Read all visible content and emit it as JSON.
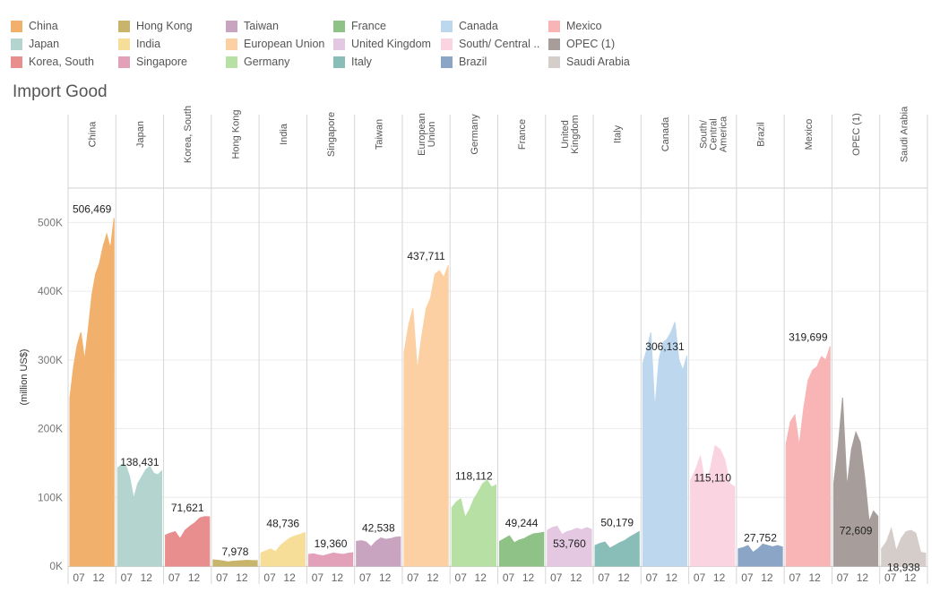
{
  "legend": {
    "items": [
      {
        "label": "China",
        "color": "#f1b06c"
      },
      {
        "label": "Japan",
        "color": "#b3d4cf"
      },
      {
        "label": "Korea, South",
        "color": "#e88e8e"
      },
      {
        "label": "Hong Kong",
        "color": "#c9b46b"
      },
      {
        "label": "India",
        "color": "#f6dd98"
      },
      {
        "label": "Singapore",
        "color": "#e3a0b9"
      },
      {
        "label": "Taiwan",
        "color": "#c9a4c1"
      },
      {
        "label": "European Union",
        "color": "#fdd0a4"
      },
      {
        "label": "Germany",
        "color": "#b6e0a4"
      },
      {
        "label": "France",
        "color": "#8fc286"
      },
      {
        "label": "United Kingdom",
        "color": "#e4c8e2"
      },
      {
        "label": "Italy",
        "color": "#88bdb8"
      },
      {
        "label": "Canada",
        "color": "#bcd7ee"
      },
      {
        "label": "South/ Central ..",
        "color": "#fbd4e1"
      },
      {
        "label": "Brazil",
        "color": "#8ba5c6"
      },
      {
        "label": "Mexico",
        "color": "#f9b5b5"
      },
      {
        "label": "OPEC (1)",
        "color": "#a79e9b"
      },
      {
        "label": "Saudi Arabia",
        "color": "#d4cdca"
      }
    ]
  },
  "title": "Import Good",
  "chart_data": {
    "type": "area",
    "title": "Import Good",
    "ylabel": "(million US$)",
    "ylim": [
      0,
      550000
    ],
    "yticks": [
      0,
      100000,
      200000,
      300000,
      400000,
      500000
    ],
    "ytick_labels": [
      "0K",
      "100K",
      "200K",
      "300K",
      "400K",
      "500K"
    ],
    "xtick_labels": [
      "07",
      "12"
    ],
    "grid": true,
    "legend_position": "top",
    "panels": [
      {
        "name": "China",
        "header": [
          "China"
        ],
        "color": "#f1b06c",
        "last_label": "506,469",
        "label_pos": "top",
        "values": [
          245000,
          290000,
          322000,
          340000,
          300000,
          345000,
          395000,
          425000,
          440000,
          465000,
          483000,
          462000,
          506469
        ]
      },
      {
        "name": "Japan",
        "header": [
          "Japan"
        ],
        "color": "#b3d4cf",
        "last_label": "138,431",
        "label_pos": "top",
        "values": [
          143000,
          148000,
          147000,
          130000,
          98000,
          120000,
          130000,
          140000,
          145000,
          135000,
          133000,
          138431
        ]
      },
      {
        "name": "Korea, South",
        "header": [
          "Korea, South"
        ],
        "color": "#e88e8e",
        "last_label": "71,621",
        "label_pos": "top",
        "values": [
          45000,
          48000,
          50000,
          40000,
          52000,
          58000,
          63000,
          70000,
          72000,
          71621
        ]
      },
      {
        "name": "Hong Kong",
        "header": [
          "Hong Kong"
        ],
        "color": "#c9b46b",
        "last_label": "7,978",
        "label_pos": "top",
        "values": [
          9000,
          8500,
          7500,
          6000,
          7000,
          7500,
          8000,
          8500,
          8000,
          7978
        ]
      },
      {
        "name": "India",
        "header": [
          "India"
        ],
        "color": "#f6dd98",
        "last_label": "48,736",
        "label_pos": "top",
        "values": [
          19000,
          22000,
          25000,
          21000,
          30000,
          36000,
          41000,
          44000,
          46000,
          48736
        ]
      },
      {
        "name": "Singapore",
        "header": [
          "Singapore"
        ],
        "color": "#e3a0b9",
        "last_label": "19,360",
        "label_pos": "top",
        "values": [
          17000,
          18000,
          16000,
          15000,
          17000,
          19000,
          18000,
          17000,
          18500,
          19360
        ]
      },
      {
        "name": "Taiwan",
        "header": [
          "Taiwan"
        ],
        "color": "#c9a4c1",
        "last_label": "42,538",
        "label_pos": "top",
        "values": [
          36000,
          37000,
          35000,
          28000,
          36000,
          41000,
          39000,
          40000,
          42000,
          42538
        ]
      },
      {
        "name": "European Union",
        "header": [
          "European",
          "Union"
        ],
        "color": "#fdd0a4",
        "last_label": "437,711",
        "label_pos": "top",
        "values": [
          310000,
          350000,
          375000,
          285000,
          335000,
          375000,
          390000,
          425000,
          430000,
          420000,
          437711
        ]
      },
      {
        "name": "Germany",
        "header": [
          "Germany"
        ],
        "color": "#b6e0a4",
        "last_label": "118,112",
        "label_pos": "top",
        "values": [
          85000,
          93000,
          98000,
          71000,
          82000,
          98000,
          108000,
          120000,
          125000,
          115000,
          118112
        ]
      },
      {
        "name": "France",
        "header": [
          "France"
        ],
        "color": "#8fc286",
        "last_label": "49,244",
        "label_pos": "top",
        "values": [
          36000,
          40000,
          44000,
          34000,
          38000,
          40000,
          44000,
          47000,
          48000,
          49244
        ]
      },
      {
        "name": "United Kingdom",
        "header": [
          "United",
          "Kingdom"
        ],
        "color": "#e4c8e2",
        "last_label": "53,760",
        "label_pos": "inside",
        "values": [
          52000,
          56000,
          58000,
          46000,
          50000,
          52000,
          55000,
          53000,
          56000,
          53760
        ]
      },
      {
        "name": "Italy",
        "header": [
          "Italy"
        ],
        "color": "#88bdb8",
        "last_label": "50,179",
        "label_pos": "top",
        "values": [
          30000,
          33000,
          35000,
          26000,
          30000,
          34000,
          37000,
          42000,
          46000,
          50179
        ]
      },
      {
        "name": "Canada",
        "header": [
          "Canada"
        ],
        "color": "#bcd7ee",
        "last_label": "306,131",
        "label_pos": "top",
        "values": [
          295000,
          315000,
          340000,
          228000,
          300000,
          325000,
          330000,
          340000,
          355000,
          300000,
          285000,
          306131
        ]
      },
      {
        "name": "South/ Central America",
        "header": [
          "South/",
          "Central",
          "America"
        ],
        "color": "#fbd4e1",
        "last_label": "115,110",
        "label_pos": "top",
        "values": [
          125000,
          140000,
          160000,
          120000,
          140000,
          175000,
          170000,
          155000,
          120000,
          115110
        ]
      },
      {
        "name": "Brazil",
        "header": [
          "Brazil"
        ],
        "color": "#8ba5c6",
        "last_label": "27,752",
        "label_pos": "top",
        "values": [
          25000,
          27000,
          30000,
          20000,
          25000,
          32000,
          30000,
          28000,
          30000,
          27752
        ]
      },
      {
        "name": "Mexico",
        "header": [
          "Mexico"
        ],
        "color": "#f9b5b5",
        "last_label": "319,699",
        "label_pos": "top",
        "values": [
          178000,
          210000,
          220000,
          175000,
          230000,
          270000,
          285000,
          290000,
          305000,
          300000,
          319699
        ]
      },
      {
        "name": "OPEC (1)",
        "header": [
          "OPEC (1)"
        ],
        "color": "#a79e9b",
        "last_label": "72,609",
        "label_pos": "inside",
        "values": [
          120000,
          175000,
          245000,
          115000,
          170000,
          195000,
          180000,
          130000,
          65000,
          80000,
          72609
        ]
      },
      {
        "name": "Saudi Arabia",
        "header": [
          "Saudi Arabia"
        ],
        "color": "#d4cdca",
        "last_label": "18,938",
        "label_pos": "inside",
        "values": [
          25000,
          35000,
          55000,
          22000,
          40000,
          50000,
          52000,
          48000,
          20000,
          18938
        ]
      }
    ]
  }
}
